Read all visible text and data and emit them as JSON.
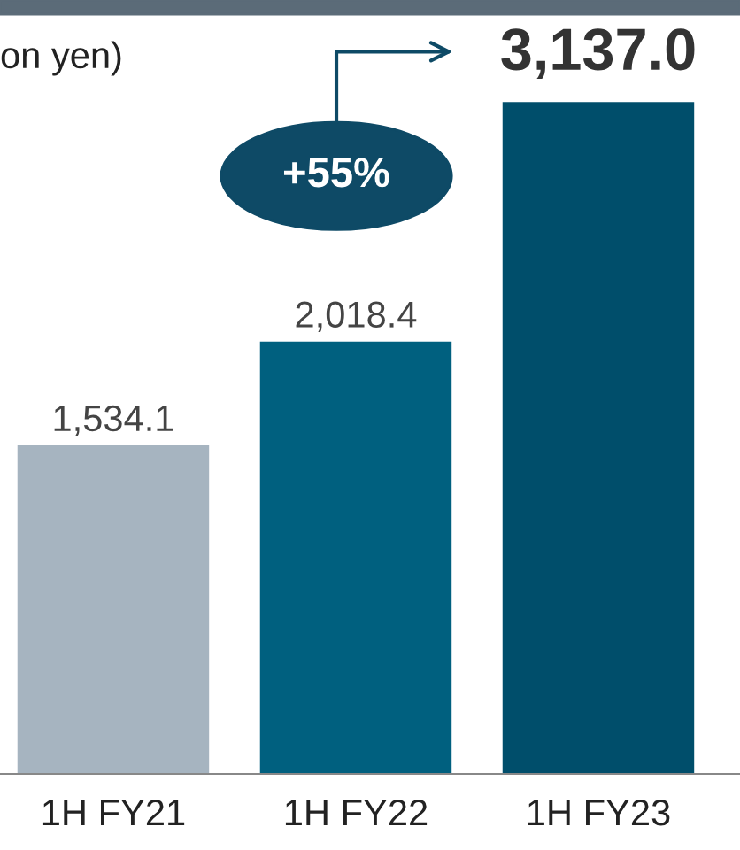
{
  "chart_data": {
    "type": "bar",
    "categories": [
      "1H FY21",
      "1H FY22",
      "1H FY23"
    ],
    "values": [
      1534.1,
      2018.4,
      3137.0
    ],
    "colors": [
      "#a6b4c0",
      "#00607f",
      "#004e6b"
    ],
    "value_labels": [
      "1,534.1",
      "2,018.4",
      "3,137.0"
    ],
    "annotations": [
      "on yen)",
      "+55%"
    ],
    "grid": false,
    "legend": false
  }
}
